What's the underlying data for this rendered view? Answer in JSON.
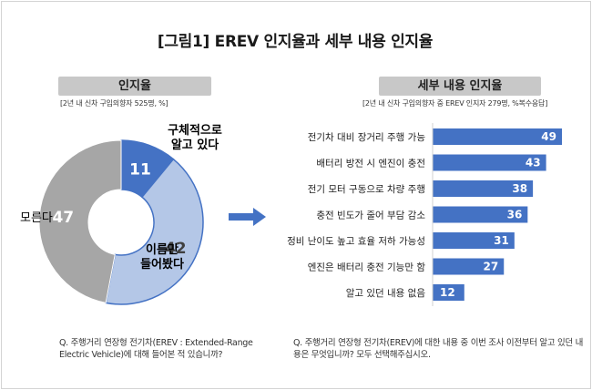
{
  "title": "[그림1] EREV 인지율과 세부 내용 인지율",
  "left_panel": {
    "header": "인지율",
    "note": "[2년 내 신차 구입의향자 525명, %]",
    "question": "Q. 주행거리 연장형 전기차(EREV : Extended-Range Electric Vehicle)에 대해 들어본 적 있습니까?"
  },
  "right_panel": {
    "header": "세부 내용 인지율",
    "note": "[2년 내 신차 구입의향자 중 EREV 인지자 279명, %복수응답]",
    "question": "Q. 주행거리 연장형 전기차(EREV)에 대한 내용 중 이번 조사 이전부터 알고 있던 내용은 무엇입니까? 모두 선택해주십시오."
  },
  "chart_data": [
    {
      "type": "pie",
      "categories": [
        "구체적으로 알고 있다",
        "이름만 들어봤다",
        "모른다"
      ],
      "values": [
        11,
        42,
        47
      ],
      "labels": [
        "구체적으로\n알고 있다",
        "이름만\n들어봤다",
        "모른다"
      ],
      "colors": [
        "#4472c4",
        "#b4c7e7",
        "#a6a6a6"
      ],
      "donut": true
    },
    {
      "type": "bar",
      "orientation": "horizontal",
      "categories": [
        "전기차 대비 장거리 주행 가능",
        "배터리 방전 시 엔진이 충전",
        "전기 모터 구동으로 차량 주행",
        "충전 빈도가 줄어 부담 감소",
        "정비 난이도 높고 효율 저하 가능성",
        "엔진은 배터리 충전 기능만 함",
        "알고 있던 내용 없음"
      ],
      "values": [
        49,
        43,
        38,
        36,
        31,
        27,
        12
      ],
      "color": "#4472c4",
      "xlim": [
        0,
        49
      ]
    }
  ]
}
